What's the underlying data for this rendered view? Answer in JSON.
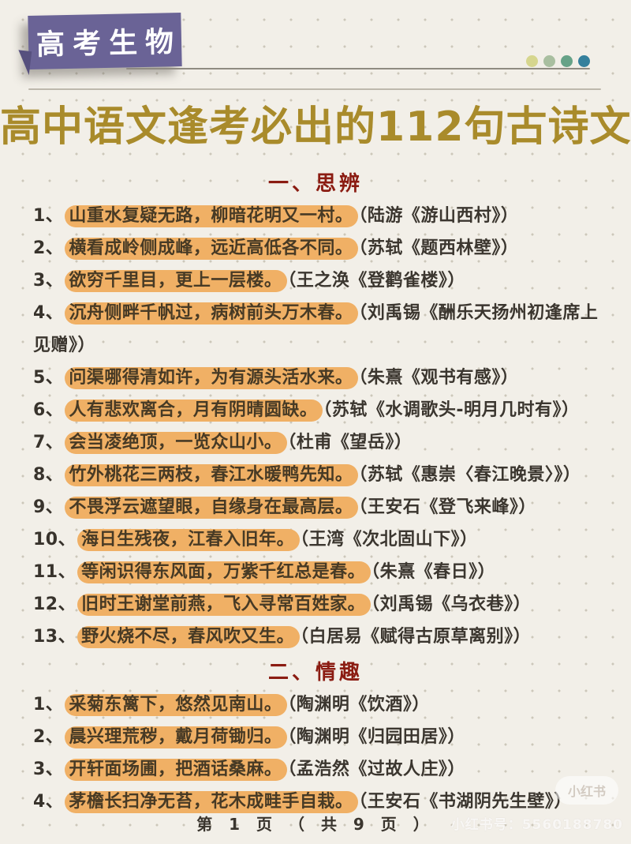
{
  "badge": {
    "label": "高考生物"
  },
  "decor_dot_colors": [
    "#d6d68e",
    "#a9bfa0",
    "#66a287",
    "#35809c"
  ],
  "title": "高中语文逢考必出的112句古诗文",
  "sections": [
    {
      "heading": "一、思辨",
      "items": [
        {
          "num": "1、",
          "quote": "山重水复疑无路，柳暗花明又一村。",
          "source": "（陆游《游山西村》）"
        },
        {
          "num": "2、",
          "quote": "横看成岭侧成峰，远近高低各不同。",
          "source": "（苏轼《题西林壁》）"
        },
        {
          "num": "3、",
          "quote": "欲穷千里目，更上一层楼。",
          "source": "（王之涣《登鹳雀楼》）"
        },
        {
          "num": "4、",
          "quote": "沉舟侧畔千帆过，病树前头万木春。",
          "source": "（刘禹锡《酬乐天扬州初逢席上见赠》）"
        },
        {
          "num": "5、",
          "quote": "问渠哪得清如许，为有源头活水来。",
          "source": "（朱熹《观书有感》）"
        },
        {
          "num": "6、",
          "quote": "人有悲欢离合，月有阴晴圆缺。",
          "source": "（苏轼《水调歌头-明月几时有》）"
        },
        {
          "num": "7、",
          "quote": "会当凌绝顶，一览众山小。",
          "source": "（杜甫《望岳》）"
        },
        {
          "num": "8、",
          "quote": "竹外桃花三两枝，春江水暖鸭先知。",
          "source": "（苏轼《惠崇〈春江晚景〉》）"
        },
        {
          "num": "9、",
          "quote": "不畏浮云遮望眼，自缘身在最高层。",
          "source": "（王安石《登飞来峰》）"
        },
        {
          "num": "10、",
          "quote": "海日生残夜，江春入旧年。",
          "source": "（王湾《次北固山下》）"
        },
        {
          "num": "11、",
          "quote": "等闲识得东风面，万紫千红总是春。",
          "source": "（朱熹《春日》）"
        },
        {
          "num": "12、",
          "quote": "旧时王谢堂前燕，飞入寻常百姓家。",
          "source": "（刘禹锡《乌衣巷》）"
        },
        {
          "num": "13、",
          "quote": "野火烧不尽，春风吹又生。",
          "source": "（白居易《赋得古原草离别》）"
        }
      ]
    },
    {
      "heading": "二、情趣",
      "items": [
        {
          "num": "1、",
          "quote": "采菊东篱下，悠然见南山。",
          "source": "（陶渊明《饮酒》）"
        },
        {
          "num": "2、",
          "quote": "晨兴理荒秽，戴月荷锄归。",
          "source": "（陶渊明《归园田居》）"
        },
        {
          "num": "3、",
          "quote": "开轩面场圃，把酒话桑麻。",
          "source": "（孟浩然《过故人庄》）"
        },
        {
          "num": "4、",
          "quote": "茅檐长扫净无苔，花木成畦手自栽。",
          "source": "（王安石《书湖阴先生壁》）"
        }
      ]
    }
  ],
  "footer": {
    "page_label": "第 1 页 （ 共 9 页 ）"
  },
  "watermark": {
    "logo": "小红书",
    "id_label": "小红书号：5560188780"
  },
  "colors": {
    "background": "#f2efe8",
    "badge_purple": "#6a6396",
    "title_gold": "#a98b2b",
    "heading_red": "#8b1c12",
    "highlight_orange": "#f0b065",
    "body_text": "#38332c"
  }
}
